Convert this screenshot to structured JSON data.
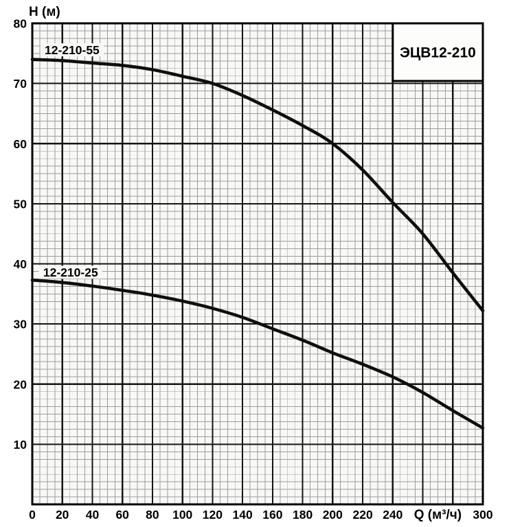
{
  "page": {
    "background_color": "#ffffff"
  },
  "chart_data": {
    "type": "line",
    "title_box": "ЭЦВ12-210",
    "xlabel": "Q (м³/ч)",
    "ylabel": "Н (м)",
    "xlim": [
      0,
      300
    ],
    "ylim": [
      0,
      80
    ],
    "grid": true,
    "legend_position": "none",
    "x_major_step": 20,
    "x_minor_step": 5,
    "y_major_step": 10,
    "y_minor_step": 1.25,
    "x_ticks": [
      0,
      20,
      40,
      60,
      80,
      100,
      120,
      140,
      160,
      180,
      200,
      220,
      240,
      300
    ],
    "xlabel_position_q": 270,
    "y_ticks": [
      10,
      20,
      30,
      40,
      50,
      60,
      70,
      80
    ],
    "series": [
      {
        "name": "12-210-55",
        "x": [
          0,
          20,
          40,
          60,
          80,
          100,
          120,
          140,
          160,
          180,
          200,
          220,
          240,
          260,
          280,
          300
        ],
        "y": [
          74,
          73.8,
          73.4,
          73,
          72.3,
          71.2,
          70,
          68,
          65.6,
          63,
          60,
          55.6,
          50.2,
          45,
          38.5,
          32.2
        ]
      },
      {
        "name": "12-210-25",
        "x": [
          0,
          20,
          40,
          60,
          80,
          100,
          120,
          140,
          160,
          180,
          200,
          220,
          240,
          260,
          280,
          300
        ],
        "y": [
          37.3,
          36.9,
          36.3,
          35.6,
          34.8,
          33.8,
          32.6,
          31.1,
          29.2,
          27.3,
          25.2,
          23.3,
          21.2,
          18.6,
          15.6,
          12.7
        ]
      }
    ],
    "annotations": [
      {
        "text": "12-210-55",
        "q": 26.5,
        "h": 75.6
      },
      {
        "text": "12-210-25",
        "q": 25.5,
        "h": 38.6
      }
    ],
    "colors": {
      "curve": "#0f0f0f",
      "grid_minor": "#9c9c9c",
      "grid_major": "#141414",
      "frame": "#000000",
      "plot_background": "#f8f8f6",
      "title_box_background": "#fdfdfc",
      "label_background": "#f8f8f6",
      "text": "#000000"
    }
  }
}
